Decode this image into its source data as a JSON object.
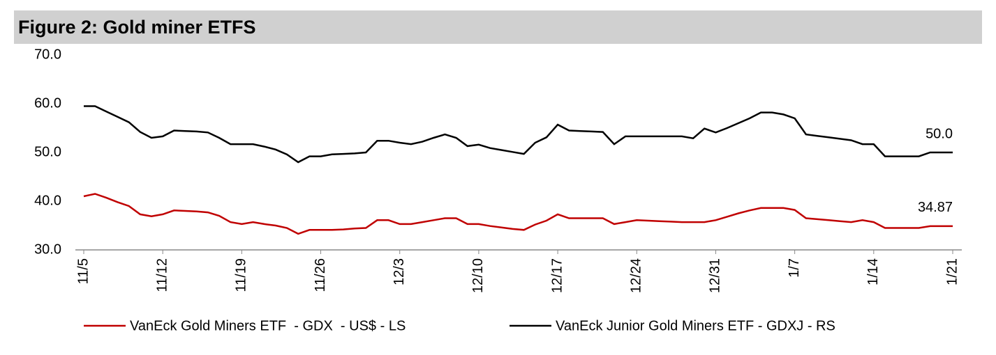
{
  "chart_data": {
    "type": "line",
    "title": "Figure 2: Gold miner ETFS",
    "categories": [
      "11/5",
      null,
      null,
      null,
      null,
      null,
      null,
      "11/12",
      null,
      null,
      null,
      null,
      null,
      null,
      "11/19",
      null,
      null,
      null,
      null,
      null,
      null,
      "11/26",
      null,
      null,
      null,
      null,
      null,
      null,
      "12/3",
      null,
      null,
      null,
      null,
      null,
      null,
      "12/10",
      null,
      null,
      null,
      null,
      null,
      null,
      "12/17",
      null,
      null,
      null,
      null,
      null,
      null,
      "12/24",
      null,
      null,
      null,
      null,
      null,
      null,
      "12/31",
      null,
      null,
      null,
      null,
      null,
      null,
      "1/7",
      null,
      null,
      null,
      null,
      null,
      null,
      "1/14",
      null,
      null,
      null,
      null,
      null,
      null,
      "1/21"
    ],
    "series": [
      {
        "name": "VanEck Gold Miners ETF  - GDX  - US$ - LS",
        "color": "#c00000",
        "values": [
          41,
          41.5,
          40.7,
          39.8,
          39,
          37.3,
          36.9,
          37.3,
          38.1,
          38,
          37.9,
          37.7,
          37,
          35.7,
          35.3,
          35.7,
          35.3,
          35,
          34.5,
          33.3,
          34.1,
          34.1,
          34.1,
          34.2,
          34.4,
          34.5,
          36.1,
          36.1,
          35.3,
          35.3,
          35.7,
          36.1,
          36.5,
          36.5,
          35.3,
          35.3,
          34.9,
          34.6,
          34.3,
          34.1,
          35.2,
          36,
          37.3,
          36.5,
          36.5,
          36.5,
          36.5,
          35.3,
          35.7,
          36.1,
          36,
          35.9,
          35.8,
          35.7,
          35.7,
          35.7,
          36.1,
          36.8,
          37.5,
          38.1,
          38.6,
          38.6,
          38.6,
          38.2,
          36.5,
          36.3,
          36.1,
          35.9,
          35.7,
          36.1,
          35.7,
          34.5,
          34.5,
          34.5,
          34.5,
          34.87,
          34.87,
          34.87
        ],
        "value_labels": [
          null,
          null,
          null,
          null,
          null,
          null,
          null,
          null,
          null,
          null,
          null,
          null,
          null,
          null,
          null,
          null,
          null,
          null,
          null,
          null,
          null,
          null,
          null,
          null,
          null,
          null,
          null,
          null,
          null,
          null,
          null,
          null,
          null,
          null,
          null,
          null,
          null,
          null,
          null,
          null,
          null,
          null,
          null,
          null,
          null,
          null,
          null,
          null,
          null,
          null,
          null,
          null,
          null,
          null,
          null,
          null,
          null,
          null,
          null,
          null,
          null,
          null,
          null,
          null,
          null,
          null,
          null,
          null,
          null,
          null,
          null,
          null,
          null,
          null,
          null,
          null,
          null,
          "34.87"
        ]
      },
      {
        "name": "VanEck Junior Gold Miners ETF - GDXJ - RS",
        "color": "#000000",
        "values": [
          59.5,
          59.5,
          58.4,
          57.3,
          56.2,
          54.2,
          53,
          53.3,
          54.5,
          54.4,
          54.3,
          54.1,
          53,
          51.7,
          51.7,
          51.7,
          51.2,
          50.6,
          49.6,
          48,
          49.2,
          49.2,
          49.6,
          49.7,
          49.8,
          50,
          52.4,
          52.4,
          52,
          51.7,
          52.2,
          53,
          53.7,
          53,
          51.3,
          51.6,
          50.9,
          50.5,
          50.1,
          49.7,
          52,
          53.1,
          55.7,
          54.5,
          54.4,
          54.3,
          54.2,
          51.7,
          53.3,
          53.3,
          53.3,
          53.3,
          53.3,
          53.3,
          52.9,
          54.9,
          54.1,
          55,
          56,
          57,
          58.2,
          58.2,
          57.8,
          57,
          53.7,
          53.4,
          53.1,
          52.8,
          52.5,
          51.7,
          51.7,
          49.2,
          49.2,
          49.2,
          49.2,
          50,
          50,
          50
        ],
        "value_labels": [
          null,
          null,
          null,
          null,
          null,
          null,
          null,
          null,
          null,
          null,
          null,
          null,
          null,
          null,
          null,
          null,
          null,
          null,
          null,
          null,
          null,
          null,
          null,
          null,
          null,
          null,
          null,
          null,
          null,
          null,
          null,
          null,
          null,
          null,
          null,
          null,
          null,
          null,
          null,
          null,
          null,
          null,
          null,
          null,
          null,
          null,
          null,
          null,
          null,
          null,
          null,
          null,
          null,
          null,
          null,
          null,
          null,
          null,
          null,
          null,
          null,
          null,
          null,
          null,
          null,
          null,
          null,
          null,
          null,
          null,
          null,
          null,
          null,
          null,
          null,
          null,
          null,
          "50.0"
        ]
      }
    ],
    "ylim": [
      30,
      70
    ],
    "yticks": [
      {
        "value": 30,
        "label": "30.0"
      },
      {
        "value": 40,
        "label": "40.0"
      },
      {
        "value": 50,
        "label": "50.0"
      },
      {
        "value": 60,
        "label": "60.0"
      },
      {
        "value": 70,
        "label": "70.0"
      }
    ],
    "grid": false,
    "legend": "bottom"
  }
}
